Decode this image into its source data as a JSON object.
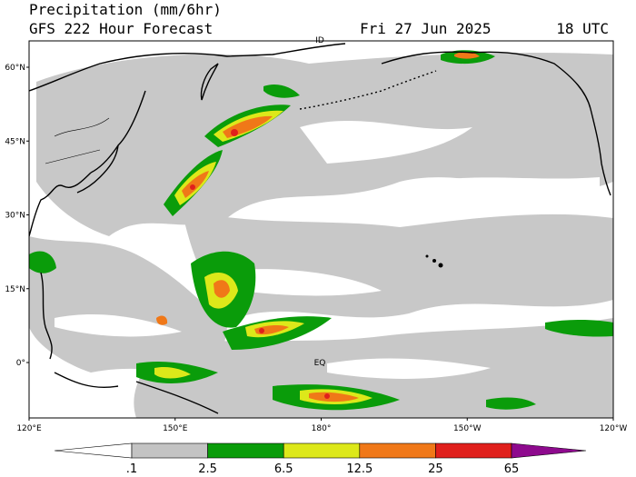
{
  "header": {
    "title": "Precipitation (mm/6hr)",
    "subtitle": "GFS 222 Hour Forecast",
    "date": "Fri 27 Jun 2025",
    "time": "18 UTC"
  },
  "map": {
    "lat_labels": [
      "60°N",
      "45°N",
      "30°N",
      "15°N",
      "0°"
    ],
    "lon_labels": [
      "120°E",
      "150°E",
      "180°",
      "150°W",
      "120°W"
    ],
    "markers": [
      "ID",
      "EQ"
    ]
  },
  "colorbar": {
    "levels": [
      {
        "value": 0.1,
        "label": ".1"
      },
      2.5,
      6.5,
      12.5,
      25,
      65
    ],
    "colors": [
      "#ffffff",
      "#c3c3c3",
      "#0a9c0a",
      "#dde81a",
      "#f07818",
      "#e0201c",
      "#8e0a8e"
    ]
  }
}
